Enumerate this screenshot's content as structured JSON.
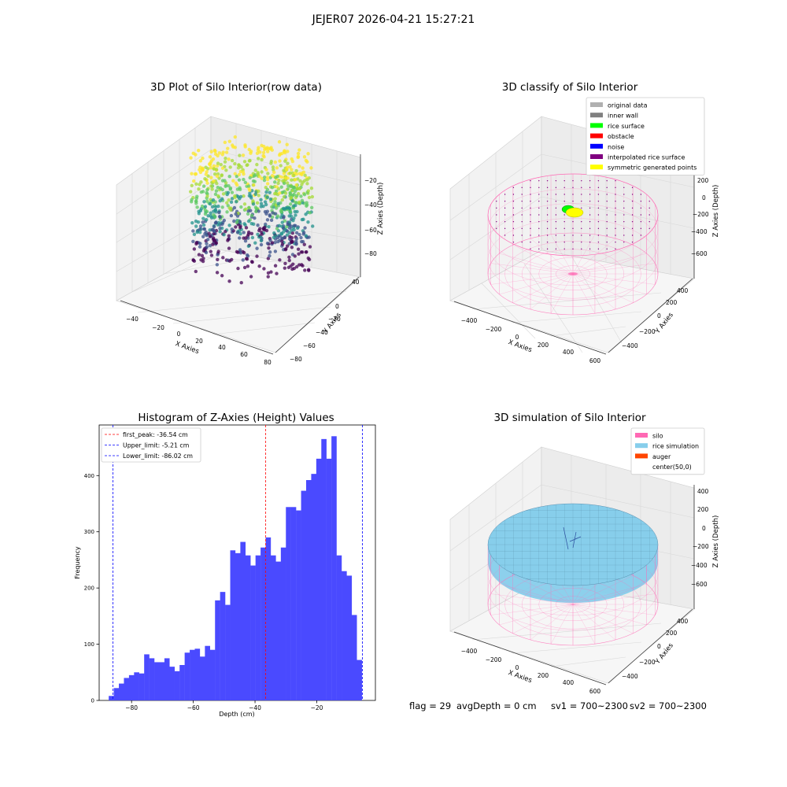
{
  "suptitle": "JEJER07 2026-04-21 15:27:21",
  "footer": {
    "flag": "flag = 29",
    "avg": "avgDepth = 0 cm",
    "sv1": "sv1 = 700~2300",
    "sv2": "sv2 = 700~2300"
  },
  "chart_data": [
    {
      "type": "scatter",
      "projection": "3d",
      "title": "3D Plot of Silo Interior(row data)",
      "xlabel": "X Axies",
      "ylabel": "Y Axies",
      "zlabel": "Z Axies (Depth)",
      "xticks": [
        "−40",
        "−20",
        "0",
        "20",
        "40",
        "60",
        "80"
      ],
      "yticks": [
        "−80",
        "−60",
        "−40",
        "−20",
        "0",
        "20",
        "40"
      ],
      "zticks": [
        "−80",
        "−60",
        "−40",
        "−20"
      ],
      "colormap": "viridis",
      "zlim": [
        -90,
        -5
      ]
    },
    {
      "type": "scatter",
      "projection": "3d",
      "title": "3D classify of Silo Interior",
      "xlabel": "X Axies",
      "ylabel": "Y Axies",
      "zlabel": "Z Axies (Depth)",
      "xticks": [
        "−400",
        "−200",
        "0",
        "200",
        "400",
        "600"
      ],
      "yticks": [
        "−400",
        "−200",
        "0",
        "200",
        "400"
      ],
      "zticks": [
        "−600",
        "−400",
        "−200",
        "0",
        "200"
      ],
      "legend": [
        {
          "label": "original data",
          "color": "#b0b0b0"
        },
        {
          "label": "inner wall",
          "color": "#808080"
        },
        {
          "label": "rice surface",
          "color": "#00ff00"
        },
        {
          "label": "obstacle",
          "color": "#ff0000"
        },
        {
          "label": "noise",
          "color": "#0000ff"
        },
        {
          "label": "interpolated rice surface",
          "color": "#800080"
        },
        {
          "label": "symmetric generated points",
          "color": "#ffff00"
        }
      ],
      "legend_loc": "upper right"
    },
    {
      "type": "bar",
      "title": "Histogram of Z-Axies (Height) Values",
      "xlabel": "Depth (cm)",
      "ylabel": "Frequency",
      "xlim": [
        -90.5,
        -1
      ],
      "ylim": [
        0,
        490
      ],
      "xticks": [
        -80,
        -60,
        -40,
        -20
      ],
      "xticklabels": [
        "−80",
        "−60",
        "−40",
        "−20"
      ],
      "yticks": [
        0,
        100,
        200,
        300,
        400
      ],
      "bar_color": "#4a4aff",
      "bin_start": -87.4,
      "bin_width": 1.64,
      "values": [
        8,
        22,
        30,
        40,
        45,
        50,
        48,
        82,
        75,
        68,
        68,
        75,
        60,
        52,
        63,
        85,
        90,
        92,
        78,
        97,
        90,
        178,
        193,
        170,
        267,
        262,
        282,
        258,
        240,
        258,
        272,
        290,
        258,
        247,
        272,
        344,
        344,
        338,
        373,
        392,
        403,
        430,
        465,
        430,
        470,
        258,
        230,
        222,
        152,
        72
      ],
      "vlines": [
        {
          "x": -36.54,
          "color": "#ff0000",
          "label": "first_peak: -36.54 cm"
        },
        {
          "x": -5.21,
          "color": "#0000ff",
          "label": "Upper_limit: -5.21 cm"
        },
        {
          "x": -86.02,
          "color": "#0000ff",
          "label": "Lower_limit: -86.02 cm"
        }
      ],
      "legend_loc": "upper left"
    },
    {
      "type": "scatter",
      "projection": "3d",
      "title": "3D simulation of Silo Interior",
      "xlabel": "X Axies",
      "ylabel": "Y Axies",
      "zlabel": "Z Axies (Depth)",
      "xticks": [
        "−400",
        "−200",
        "0",
        "200",
        "400",
        "600"
      ],
      "yticks": [
        "−400",
        "−200",
        "0",
        "200",
        "400"
      ],
      "zticks": [
        "−600",
        "−400",
        "−200",
        "0",
        "200",
        "400"
      ],
      "legend": [
        {
          "label": "silo",
          "color": "#ff69b4"
        },
        {
          "label": "rice simulation",
          "color": "#87ceeb"
        },
        {
          "label": "auger",
          "color": "#ff4500"
        },
        {
          "label": "center(50,0)",
          "color": "none"
        }
      ],
      "legend_loc": "upper right"
    }
  ]
}
